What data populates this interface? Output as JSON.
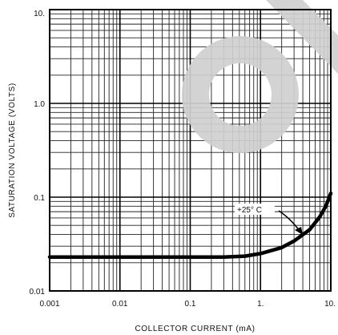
{
  "chart_data": {
    "type": "line",
    "title": "",
    "xlabel": "COLLECTOR CURRENT (mA)",
    "ylabel": "SATURATION VOLTAGE (VOLTS)",
    "x_scale": "log",
    "y_scale": "log",
    "xlim": [
      0.001,
      10
    ],
    "ylim": [
      0.01,
      10
    ],
    "grid": true,
    "x_tick_labels": [
      "0.001",
      "0.01",
      "0.1",
      "1.",
      "10."
    ],
    "y_tick_labels": [
      "0.01",
      "0.1",
      "1.0",
      "10."
    ],
    "annotation": "+25° C",
    "series": [
      {
        "name": "",
        "x": [
          0.001,
          0.01,
          0.1,
          0.3,
          0.6,
          1.0,
          2.0,
          3.0,
          5.0,
          7.0,
          8.5,
          10.0
        ],
        "y": [
          0.023,
          0.023,
          0.023,
          0.023,
          0.0235,
          0.025,
          0.029,
          0.034,
          0.045,
          0.062,
          0.08,
          0.11
        ]
      }
    ]
  },
  "decor": {
    "watermark_color": "#cfcfcf"
  }
}
